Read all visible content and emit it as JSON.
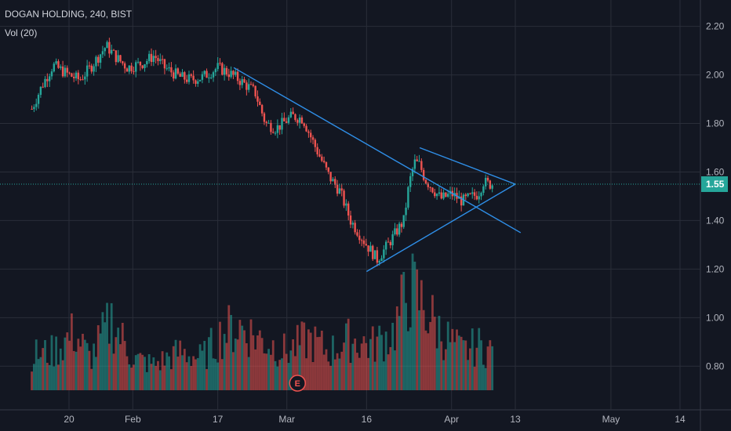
{
  "header": {
    "title": "DOGAN HOLDING, 240, BIST",
    "volume_label": "Vol (20)"
  },
  "colors": {
    "up": "#26a69a",
    "down": "#ef5350",
    "line": "#2f8fe8",
    "last": "#26a69a",
    "bg": "#131722",
    "grid": "#2a2e39"
  },
  "earnings_marker": "E",
  "chart_data": {
    "type": "candlestick",
    "ylim": [
      0.62,
      2.27
    ],
    "y_ticks": [
      "2.20",
      "2.00",
      "1.80",
      "1.60",
      "1.40",
      "1.20",
      "1.00",
      "0.80"
    ],
    "x_ticks": [
      "20",
      "Feb",
      "17",
      "Mar",
      "16",
      "Apr",
      "13",
      "May",
      "14"
    ],
    "x_tick_dates": [
      "2020-01-20",
      "2020-02-01",
      "2020-02-17",
      "2020-03-01",
      "2020-03-16",
      "2020-04-01",
      "2020-04-13",
      "2020-05-01",
      "2020-05-14"
    ],
    "last_price": "1.55",
    "price_path": [
      [
        "2020-01-13",
        1.86
      ],
      [
        "2020-01-15",
        1.96
      ],
      [
        "2020-01-17",
        2.04
      ],
      [
        "2020-01-20",
        2.0
      ],
      [
        "2020-01-22",
        1.98
      ],
      [
        "2020-01-24",
        2.03
      ],
      [
        "2020-01-27",
        2.12
      ],
      [
        "2020-01-29",
        2.07
      ],
      [
        "2020-01-31",
        2.03
      ],
      [
        "2020-02-03",
        2.05
      ],
      [
        "2020-02-05",
        2.08
      ],
      [
        "2020-02-07",
        2.03
      ],
      [
        "2020-02-10",
        1.99
      ],
      [
        "2020-02-12",
        1.98
      ],
      [
        "2020-02-14",
        1.99
      ],
      [
        "2020-02-17",
        2.03
      ],
      [
        "2020-02-19",
        2.01
      ],
      [
        "2020-02-21",
        1.98
      ],
      [
        "2020-02-24",
        1.93
      ],
      [
        "2020-02-26",
        1.8
      ],
      [
        "2020-02-28",
        1.78
      ],
      [
        "2020-03-02",
        1.83
      ],
      [
        "2020-03-04",
        1.82
      ],
      [
        "2020-03-06",
        1.72
      ],
      [
        "2020-03-09",
        1.58
      ],
      [
        "2020-03-11",
        1.52
      ],
      [
        "2020-03-13",
        1.4
      ],
      [
        "2020-03-16",
        1.3
      ],
      [
        "2020-03-18",
        1.24
      ],
      [
        "2020-03-20",
        1.3
      ],
      [
        "2020-03-23",
        1.4
      ],
      [
        "2020-03-24",
        1.55
      ],
      [
        "2020-03-25",
        1.64
      ],
      [
        "2020-03-26",
        1.63
      ],
      [
        "2020-03-27",
        1.57
      ],
      [
        "2020-03-30",
        1.49
      ],
      [
        "2020-04-01",
        1.51
      ],
      [
        "2020-04-03",
        1.48
      ],
      [
        "2020-04-06",
        1.51
      ],
      [
        "2020-04-07",
        1.56
      ],
      [
        "2020-04-08",
        1.55
      ],
      [
        "2020-04-09",
        1.55
      ]
    ],
    "volume_ylim": [
      0,
      2.4
    ],
    "volume_path": [
      [
        "2020-01-13",
        0.55
      ],
      [
        "2020-01-17",
        0.6
      ],
      [
        "2020-01-21",
        0.9
      ],
      [
        "2020-01-24",
        0.5
      ],
      [
        "2020-01-28",
        1.1
      ],
      [
        "2020-02-01",
        0.5
      ],
      [
        "2020-02-05",
        0.4
      ],
      [
        "2020-02-10",
        0.6
      ],
      [
        "2020-02-14",
        0.5
      ],
      [
        "2020-02-18",
        0.9
      ],
      [
        "2020-02-21",
        1.0
      ],
      [
        "2020-02-25",
        0.8
      ],
      [
        "2020-03-01",
        0.6
      ],
      [
        "2020-03-05",
        0.8
      ],
      [
        "2020-03-09",
        0.6
      ],
      [
        "2020-03-13",
        0.8
      ],
      [
        "2020-03-17",
        0.7
      ],
      [
        "2020-03-21",
        0.9
      ],
      [
        "2020-03-24",
        1.6
      ],
      [
        "2020-03-26",
        1.4
      ],
      [
        "2020-03-30",
        0.9
      ],
      [
        "2020-04-03",
        0.6
      ],
      [
        "2020-04-06",
        0.7
      ],
      [
        "2020-04-09",
        0.6
      ]
    ],
    "earnings_date": "2020-03-03",
    "trendlines": [
      {
        "from": [
          "2020-02-20",
          2.03
        ],
        "to": [
          "2020-04-14",
          1.35
        ]
      },
      {
        "from": [
          "2020-03-16",
          1.19
        ],
        "to": [
          "2020-04-13",
          1.55
        ]
      },
      {
        "from": [
          "2020-03-26",
          1.7
        ],
        "to": [
          "2020-04-13",
          1.55
        ]
      }
    ]
  }
}
